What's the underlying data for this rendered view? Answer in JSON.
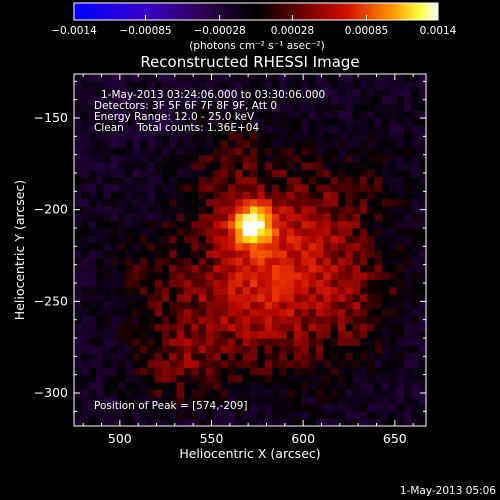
{
  "chart_data": {
    "type": "heatmap",
    "title": "Reconstructed RHESSI Image",
    "xlabel": "Heliocentric X (arcsec)",
    "ylabel": "Heliocentric Y (arcsec)",
    "xlim": [
      475,
      667
    ],
    "ylim": [
      -318,
      -126
    ],
    "x_ticks": [
      500,
      550,
      600,
      650
    ],
    "y_ticks": [
      -150,
      -200,
      -250,
      -300
    ],
    "colorbar": {
      "range": [
        -0.0014,
        0.0014
      ],
      "tick_labels": [
        "-0.0014",
        "-0.00085",
        "-0.00028",
        "0.00028",
        "0.00085",
        "0.0014"
      ],
      "unit_label": "(photons cm⁻² s⁻¹ asec⁻²)",
      "colormap": "blue-purple-black-red-orange-yellow-white"
    },
    "annotations": {
      "time_range": "1-May-2013 03:24:06.000 to 03:30:06.000",
      "detectors": "Detectors: 3F 5F 6F 7F 8F 9F, Att 0",
      "energy": "Energy Range: 12.0 - 25.0 keV",
      "clean": "Clean    Total counts: 1.36E+04",
      "peak": "Position of Peak = [574,-209]"
    },
    "peak": [
      574,
      -209
    ],
    "image_model": {
      "core": {
        "x": 572,
        "y": -208,
        "amplitude": 0.00135,
        "sigma": 8
      },
      "blobs": [
        {
          "x": 580,
          "y": -232,
          "amplitude": 0.00042,
          "sigma": 20
        },
        {
          "x": 555,
          "y": -255,
          "amplitude": 0.00034,
          "sigma": 26
        },
        {
          "x": 600,
          "y": -200,
          "amplitude": 0.0003,
          "sigma": 22
        },
        {
          "x": 620,
          "y": -230,
          "amplitude": 0.00026,
          "sigma": 22
        },
        {
          "x": 530,
          "y": -285,
          "amplitude": 0.00028,
          "sigma": 16
        },
        {
          "x": 560,
          "y": -175,
          "amplitude": 0.00024,
          "sigma": 18
        },
        {
          "x": 640,
          "y": -185,
          "amplitude": 0.00014,
          "sigma": 18
        },
        {
          "x": 600,
          "y": -270,
          "amplitude": 0.00022,
          "sigma": 24
        },
        {
          "x": 515,
          "y": -235,
          "amplitude": 0.00016,
          "sigma": 18
        },
        {
          "x": 635,
          "y": -255,
          "amplitude": 0.00018,
          "sigma": 16
        },
        {
          "x": 545,
          "y": -205,
          "amplitude": 0.00016,
          "sigma": 14
        }
      ],
      "background": -0.00018,
      "pixel_arcsec": 4
    }
  },
  "footer": {
    "timestamp": "1-May-2013 05:06"
  }
}
